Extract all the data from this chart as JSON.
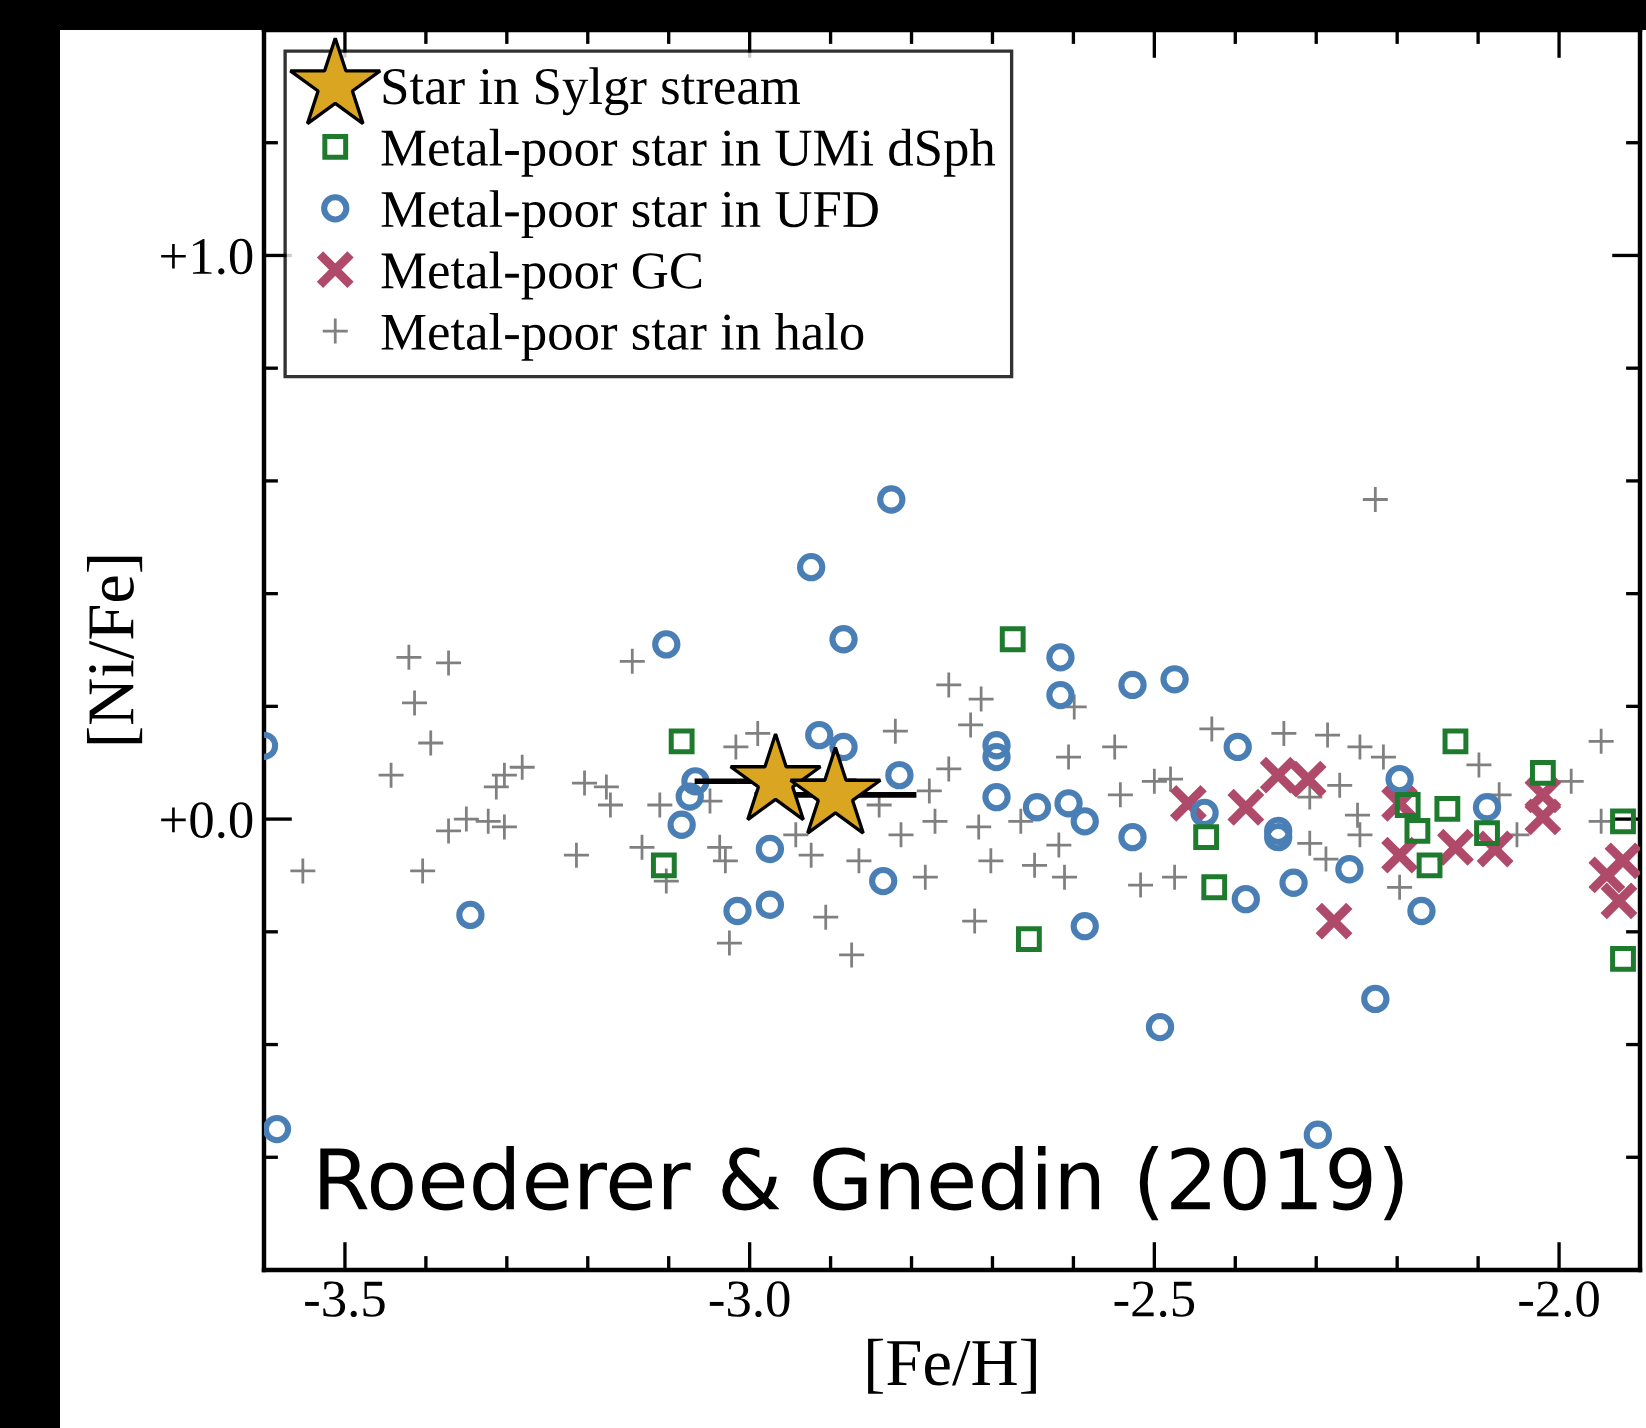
{
  "chart_data": {
    "type": "scatter",
    "xlabel": "[Fe/H]",
    "ylabel": "[Ni/Fe]",
    "xlim": [
      -3.6,
      -1.9
    ],
    "ylim": [
      -0.8,
      1.4
    ],
    "xticks": [
      {
        "value": -3.6,
        "label": null
      },
      {
        "value": -3.5,
        "label": "-3.5"
      },
      {
        "value": -3.4,
        "label": null
      },
      {
        "value": -3.3,
        "label": null
      },
      {
        "value": -3.2,
        "label": null
      },
      {
        "value": -3.1,
        "label": null
      },
      {
        "value": -3.0,
        "label": "-3.0"
      },
      {
        "value": -2.9,
        "label": null
      },
      {
        "value": -2.8,
        "label": null
      },
      {
        "value": -2.7,
        "label": null
      },
      {
        "value": -2.6,
        "label": null
      },
      {
        "value": -2.5,
        "label": "-2.5"
      },
      {
        "value": -2.4,
        "label": null
      },
      {
        "value": -2.3,
        "label": null
      },
      {
        "value": -2.2,
        "label": null
      },
      {
        "value": -2.1,
        "label": null
      },
      {
        "value": -2.0,
        "label": "-2.0"
      }
    ],
    "yticks": [
      {
        "value": -0.8,
        "label": null
      },
      {
        "value": -0.6,
        "label": null
      },
      {
        "value": -0.4,
        "label": null
      },
      {
        "value": -0.2,
        "label": null
      },
      {
        "value": 0.0,
        "label": "+0.0"
      },
      {
        "value": 0.2,
        "label": null
      },
      {
        "value": 0.4,
        "label": null
      },
      {
        "value": 0.6,
        "label": null
      },
      {
        "value": 0.8,
        "label": null
      },
      {
        "value": 1.0,
        "label": "+1.0"
      },
      {
        "value": 1.2,
        "label": null
      },
      {
        "value": 1.4,
        "label": null
      }
    ],
    "grid": false,
    "legend": "top left",
    "annotations": [
      "Roederer & Gnedin (2019)"
    ],
    "series": [
      {
        "name": "Star in Sylgr stream",
        "color": "#daa520",
        "marker": "star",
        "x": [
          -2.968,
          -2.894
        ],
        "values": [
          0.067,
          0.043
        ],
        "xerrors": [
          0.1,
          0.1
        ]
      },
      {
        "name": "Metal-poor star in UMi dSph",
        "color": "#1e7b2e",
        "marker": "square",
        "x": [
          -3.084,
          -3.106,
          -2.675,
          -2.655,
          -2.436,
          -2.426,
          -2.128,
          -2.138,
          -2.175,
          -2.16,
          -2.089,
          -2.02,
          -2.187,
          -1.921,
          -1.921
        ],
        "values": [
          0.138,
          -0.082,
          0.319,
          -0.213,
          -0.032,
          -0.121,
          0.138,
          0.018,
          -0.021,
          -0.082,
          -0.025,
          0.082,
          0.025,
          -0.004,
          -0.248
        ]
      },
      {
        "name": "Metal-poor star in UFD",
        "color": "#4a7fb5",
        "marker": "circle",
        "x": [
          -3.6,
          -3.584,
          -3.345,
          -3.103,
          -3.067,
          -3.074,
          -3.084,
          -2.825,
          -2.924,
          -2.884,
          -2.616,
          -2.616,
          -2.527,
          -2.475,
          -2.914,
          -2.884,
          -2.815,
          -2.695,
          -2.695,
          -2.695,
          -2.645,
          -2.606,
          -2.586,
          -2.527,
          -2.975,
          -2.835,
          -3.015,
          -2.975,
          -2.586,
          -2.397,
          -2.438,
          -2.347,
          -2.347,
          -2.328,
          -2.387,
          -2.259,
          -2.197,
          -2.089,
          -2.17,
          -2.227,
          -2.493,
          -2.298
        ],
        "values": [
          0.13,
          -0.55,
          -0.17,
          0.31,
          0.067,
          0.04,
          -0.01,
          0.567,
          0.447,
          0.319,
          0.287,
          0.22,
          0.238,
          0.248,
          0.149,
          0.128,
          0.078,
          0.131,
          0.11,
          0.039,
          0.021,
          0.028,
          -0.004,
          -0.032,
          -0.053,
          -0.11,
          -0.163,
          -0.152,
          -0.19,
          0.128,
          0.011,
          -0.021,
          -0.032,
          -0.113,
          -0.142,
          -0.089,
          0.071,
          0.021,
          -0.163,
          -0.319,
          -0.369,
          -0.56
        ]
      },
      {
        "name": "Metal-poor GC",
        "color": "#b04a6a",
        "marker": "cross",
        "x": [
          -2.458,
          -2.387,
          -2.347,
          -2.31,
          -2.197,
          -2.197,
          -2.128,
          -2.079,
          -2.02,
          -2.02,
          -2.278,
          -1.941,
          -1.921,
          -1.926
        ],
        "values": [
          0.028,
          0.021,
          0.078,
          0.071,
          0.028,
          -0.064,
          -0.05,
          -0.053,
          0.043,
          0.004,
          -0.181,
          -0.099,
          -0.074,
          -0.145
        ]
      },
      {
        "name": "Metal-poor star in halo",
        "color": "#808080",
        "marker": "plus",
        "x": [
          -3.421,
          -3.372,
          -3.414,
          -3.394,
          -3.443,
          -3.552,
          -3.404,
          -3.372,
          -3.35,
          -3.323,
          -3.303,
          -3.313,
          -3.303,
          -3.281,
          -3.214,
          -3.204,
          -3.177,
          -3.172,
          -3.145,
          -3.133,
          -3.111,
          -3.103,
          -2.754,
          -2.714,
          -2.727,
          -2.99,
          -3.017,
          -2.82,
          -2.754,
          -2.599,
          -2.606,
          -2.549,
          -2.5,
          -3.049,
          -3.037,
          -3.03,
          -2.943,
          -2.924,
          -2.865,
          -2.813,
          -2.84,
          -2.778,
          -2.771,
          -2.717,
          -2.702,
          -2.648,
          -2.618,
          -2.611,
          -2.783,
          -2.517,
          -2.722,
          -2.906,
          -2.874,
          -3.025,
          -2.542,
          -2.665,
          -2.227,
          -2.429,
          -2.34,
          -2.286,
          -2.246,
          -2.217,
          -2.099,
          -1.948,
          -2.48,
          -2.308,
          -2.271,
          -2.249,
          -2.308,
          -2.288,
          -2.246,
          -2.475,
          -2.197,
          -2.074,
          -1.985,
          -1.948,
          -2.052
        ],
        "values": [
          0.287,
          0.277,
          0.206,
          0.135,
          0.078,
          -0.092,
          -0.092,
          -0.021,
          0.0,
          -0.004,
          -0.014,
          0.057,
          0.078,
          0.092,
          -0.064,
          0.064,
          0.057,
          0.025,
          0.28,
          -0.05,
          0.025,
          -0.11,
          0.238,
          0.213,
          0.167,
          0.152,
          0.128,
          0.156,
          0.089,
          0.199,
          0.11,
          0.128,
          0.067,
          0.032,
          -0.05,
          -0.074,
          -0.028,
          -0.064,
          -0.074,
          -0.028,
          0.025,
          0.05,
          -0.004,
          -0.014,
          -0.074,
          -0.082,
          -0.046,
          -0.103,
          -0.103,
          -0.117,
          -0.181,
          -0.174,
          -0.241,
          -0.22,
          0.043,
          -0.004,
          0.567,
          0.16,
          0.152,
          0.149,
          0.128,
          0.11,
          0.096,
          0.138,
          0.071,
          0.039,
          0.06,
          0.007,
          -0.043,
          -0.071,
          -0.028,
          -0.103,
          -0.121,
          0.043,
          0.067,
          -0.004,
          -0.028
        ]
      }
    ]
  }
}
